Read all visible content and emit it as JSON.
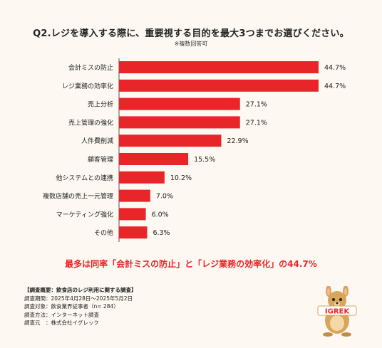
{
  "title": "Q2.レジを導入する際に、重要視する目的を最大3つまでお選びください。",
  "subtitle": "※複数回答可",
  "chart_data": {
    "type": "bar",
    "orientation": "horizontal",
    "categories": [
      "会計ミスの防止",
      "レジ業務の効率化",
      "売上分析",
      "売上管理の強化",
      "人件費削減",
      "顧客管理",
      "他システムとの連携",
      "複数店舗の売上一元管理",
      "マーケティング強化",
      "その他"
    ],
    "values": [
      44.7,
      44.7,
      27.1,
      27.1,
      22.9,
      15.5,
      10.2,
      7.0,
      6.0,
      6.3
    ],
    "value_labels": [
      "44.7%",
      "44.7%",
      "27.1%",
      "27.1%",
      "22.9%",
      "15.5%",
      "10.2%",
      "7.0%",
      "6.0%",
      "6.3%"
    ],
    "xlim": [
      0,
      44.7
    ],
    "grid": false,
    "bar_color": "#e8262a"
  },
  "conclusion": "最多は同率「会計ミスの防止」と「レジ業務の効率化」の44.7%",
  "survey": {
    "heading": "【調査概要：飲食店のレジ利用に関する調査】",
    "rows": [
      "調査期間：2025年4月28日～2025年5月2日",
      "調査対象：飲食業界従事者（n= 284）",
      "調査方法：インターネット調査",
      "調査元　：株式会社イグレック"
    ]
  },
  "logo": {
    "text": "IGREK",
    "icon": "kangaroo-mascot-icon"
  }
}
